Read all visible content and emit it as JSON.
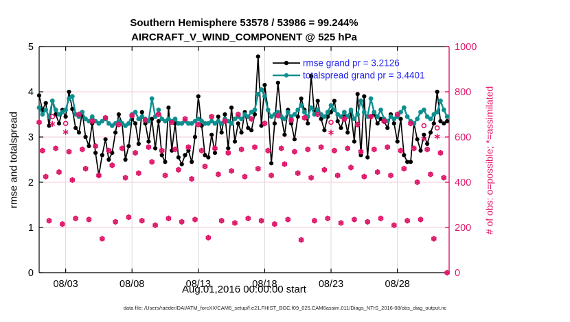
{
  "title": {
    "line1": "Southern Hemisphere 53578 / 53986 = 99.244%",
    "line2": "AIRCRAFT_V_WIND_COMPONENT @ 525 hPa"
  },
  "axes": {
    "left": {
      "label": "rmse and totalspread",
      "ticks": [
        0,
        1,
        2,
        3,
        4,
        5
      ],
      "range": [
        0,
        5
      ],
      "color": "#000000"
    },
    "right": {
      "label": "# of obs: o=possible; *=assimilated",
      "ticks": [
        0,
        200,
        400,
        600,
        800,
        1000
      ],
      "range": [
        0,
        1000
      ],
      "color": "#de1468"
    },
    "x": {
      "label": "Aug.01,2016 00:00:00 start",
      "span_days": 30.9,
      "ticks": [
        {
          "label": "08/03",
          "day": 2
        },
        {
          "label": "08/08",
          "day": 7
        },
        {
          "label": "08/13",
          "day": 12
        },
        {
          "label": "08/18",
          "day": 17
        },
        {
          "label": "08/23",
          "day": 22
        },
        {
          "label": "08/28",
          "day": 27
        }
      ]
    }
  },
  "legend": {
    "text_color": "#2424f0",
    "entries": [
      {
        "label": "rmse grand pr = 3.2126",
        "color": "#000000"
      },
      {
        "label": "totalspread grand pr = 3.4401",
        "color": "#0e8f8f"
      }
    ]
  },
  "footer": {
    "data_file": "data file: /Users/raeder/DAI/ATM_forcXX/CAM6_setup/f.e21.FHIST_BGC.f09_025.CAM6assim.011/Diags_NTrS_2016-08/obs_diag_output.nc"
  },
  "style_colors": {
    "grid_horizontal": "#f5c9da",
    "grid_vertical": "#d9d9d9",
    "frame_black": "#000000",
    "frame_pink": "#de1468"
  },
  "chart_data": {
    "type": "line",
    "title": "Southern Hemisphere 53578 / 53986 = 99.244% — AIRCRAFT_V_WIND_COMPONENT @ 525 hPa",
    "time_start": "2016-08-01 00:00",
    "time_step_hours": 6,
    "xlabel": "Aug.01,2016 00:00:00 start",
    "ylabel_left": "rmse and totalspread",
    "ylabel_right": "# of obs: o=possible; *=assimilated",
    "ylim_left": [
      0,
      5
    ],
    "ylim_right": [
      0,
      1000
    ],
    "grid": true,
    "legend_position": "top-right-inside",
    "rmse_grand_prior": 3.2126,
    "totalspread_grand_prior": 3.4401,
    "series": [
      {
        "name": "rmse",
        "color": "#000000",
        "marker": "filled-circle",
        "values": [
          3.92,
          3.6,
          3.75,
          3.25,
          3.8,
          3.5,
          3.3,
          3.6,
          3.45,
          4.0,
          3.62,
          3.2,
          3.1,
          3.55,
          3.0,
          2.8,
          3.3,
          2.65,
          2.15,
          2.6,
          2.95,
          2.5,
          2.65,
          3.1,
          3.5,
          3.3,
          2.5,
          2.8,
          3.4,
          3.3,
          2.85,
          3.55,
          3.3,
          2.9,
          3.4,
          2.75,
          3.35,
          2.6,
          2.45,
          3.65,
          2.7,
          3.3,
          2.55,
          2.4,
          2.6,
          2.7,
          2.45,
          3.0,
          3.9,
          3.25,
          2.6,
          2.55,
          3.05,
          2.65,
          3.45,
          3.1,
          3.5,
          2.75,
          3.65,
          2.9,
          3.3,
          3.1,
          3.55,
          3.2,
          3.15,
          3.5,
          4.78,
          3.25,
          4.15,
          3.6,
          2.42,
          3.3,
          4.2,
          3.45,
          3.05,
          3.6,
          3.3,
          2.95,
          3.45,
          3.85,
          3.6,
          3.3,
          4.35,
          3.5,
          3.8,
          3.4,
          3.15,
          3.45,
          3.55,
          3.8,
          3.35,
          3.2,
          3.45,
          3.1,
          3.55,
          2.9,
          3.95,
          2.6,
          3.9,
          2.55,
          3.45,
          3.5,
          3.3,
          3.4,
          3.35,
          3.2,
          3.5,
          3.3,
          2.9,
          3.4,
          2.6,
          2.45,
          2.45,
          3.3,
          2.95,
          2.7,
          3.05,
          2.85,
          3.1,
          3.3,
          4.0,
          3.35,
          3.3,
          3.35
        ]
      },
      {
        "name": "totalspread",
        "color": "#0e8f8f",
        "marker": "filled-circle",
        "values": [
          3.65,
          3.5,
          3.6,
          3.45,
          3.8,
          3.6,
          3.5,
          3.55,
          3.6,
          3.85,
          3.9,
          3.5,
          3.45,
          3.55,
          3.4,
          3.35,
          3.45,
          3.35,
          3.3,
          3.35,
          3.4,
          3.3,
          3.25,
          3.3,
          3.35,
          3.3,
          3.25,
          3.3,
          3.5,
          3.55,
          3.4,
          3.45,
          3.4,
          3.35,
          3.85,
          3.45,
          3.6,
          3.4,
          3.35,
          3.4,
          3.35,
          3.4,
          3.3,
          3.3,
          3.35,
          3.3,
          3.3,
          3.35,
          3.4,
          3.35,
          3.3,
          3.3,
          3.35,
          3.3,
          3.35,
          3.3,
          3.4,
          3.35,
          3.3,
          3.4,
          3.45,
          3.4,
          3.5,
          3.45,
          3.55,
          3.6,
          3.95,
          4.05,
          3.9,
          3.6,
          3.45,
          3.5,
          3.55,
          3.45,
          3.4,
          3.55,
          3.45,
          3.5,
          3.6,
          3.7,
          3.55,
          3.45,
          3.65,
          3.5,
          3.6,
          3.5,
          3.45,
          3.55,
          3.7,
          3.6,
          3.5,
          3.45,
          3.55,
          3.45,
          3.6,
          3.4,
          3.5,
          3.8,
          3.55,
          3.45,
          3.85,
          3.55,
          3.45,
          3.6,
          3.4,
          3.35,
          3.45,
          3.4,
          3.45,
          3.55,
          3.65,
          3.45,
          3.35,
          3.3,
          3.4,
          3.55,
          3.6,
          3.45,
          3.4,
          3.5,
          3.55,
          3.8,
          3.6,
          3.45
        ]
      }
    ],
    "obs_counts": {
      "color": "#de1468",
      "possible_marker": "o",
      "assimilated_marker": "*",
      "possible": [
        665,
        540,
        425,
        230,
        690,
        550,
        445,
        215,
        660,
        535,
        410,
        240,
        700,
        545,
        460,
        235,
        670,
        560,
        430,
        150,
        685,
        540,
        475,
        225,
        655,
        550,
        420,
        245,
        695,
        530,
        440,
        230,
        675,
        555,
        490,
        210,
        700,
        540,
        430,
        240,
        665,
        545,
        455,
        225,
        680,
        555,
        415,
        235,
        655,
        540,
        470,
        155,
        690,
        550,
        435,
        230,
        670,
        530,
        450,
        220,
        700,
        545,
        425,
        240,
        680,
        555,
        460,
        230,
        660,
        540,
        430,
        215,
        695,
        550,
        480,
        235,
        675,
        535,
        440,
        145,
        685,
        545,
        420,
        230,
        700,
        555,
        455,
        240,
        665,
        540,
        430,
        220,
        680,
        550,
        465,
        235,
        655,
        535,
        425,
        225,
        690,
        545,
        445,
        240,
        670,
        555,
        430,
        210,
        700,
        540,
        460,
        230,
        660,
        550,
        400,
        235,
        650,
        545,
        435,
        150,
        640,
        530,
        420,
        0
      ],
      "assimilated": [
        665,
        540,
        425,
        230,
        658,
        550,
        445,
        215,
        622,
        535,
        410,
        240,
        700,
        545,
        460,
        235,
        670,
        560,
        430,
        150,
        685,
        540,
        475,
        225,
        655,
        550,
        420,
        245,
        695,
        530,
        440,
        230,
        675,
        555,
        490,
        210,
        700,
        540,
        430,
        240,
        665,
        545,
        455,
        225,
        680,
        555,
        415,
        235,
        655,
        540,
        470,
        155,
        690,
        550,
        435,
        230,
        670,
        530,
        450,
        220,
        700,
        545,
        425,
        240,
        680,
        555,
        460,
        230,
        660,
        540,
        430,
        215,
        695,
        550,
        480,
        235,
        675,
        535,
        440,
        145,
        685,
        545,
        420,
        230,
        700,
        555,
        455,
        240,
        620,
        540,
        430,
        220,
        680,
        550,
        465,
        235,
        655,
        535,
        425,
        225,
        690,
        545,
        445,
        240,
        670,
        555,
        430,
        210,
        700,
        540,
        460,
        230,
        660,
        550,
        400,
        235,
        592,
        545,
        435,
        150,
        602,
        530,
        420,
        0
      ]
    }
  }
}
